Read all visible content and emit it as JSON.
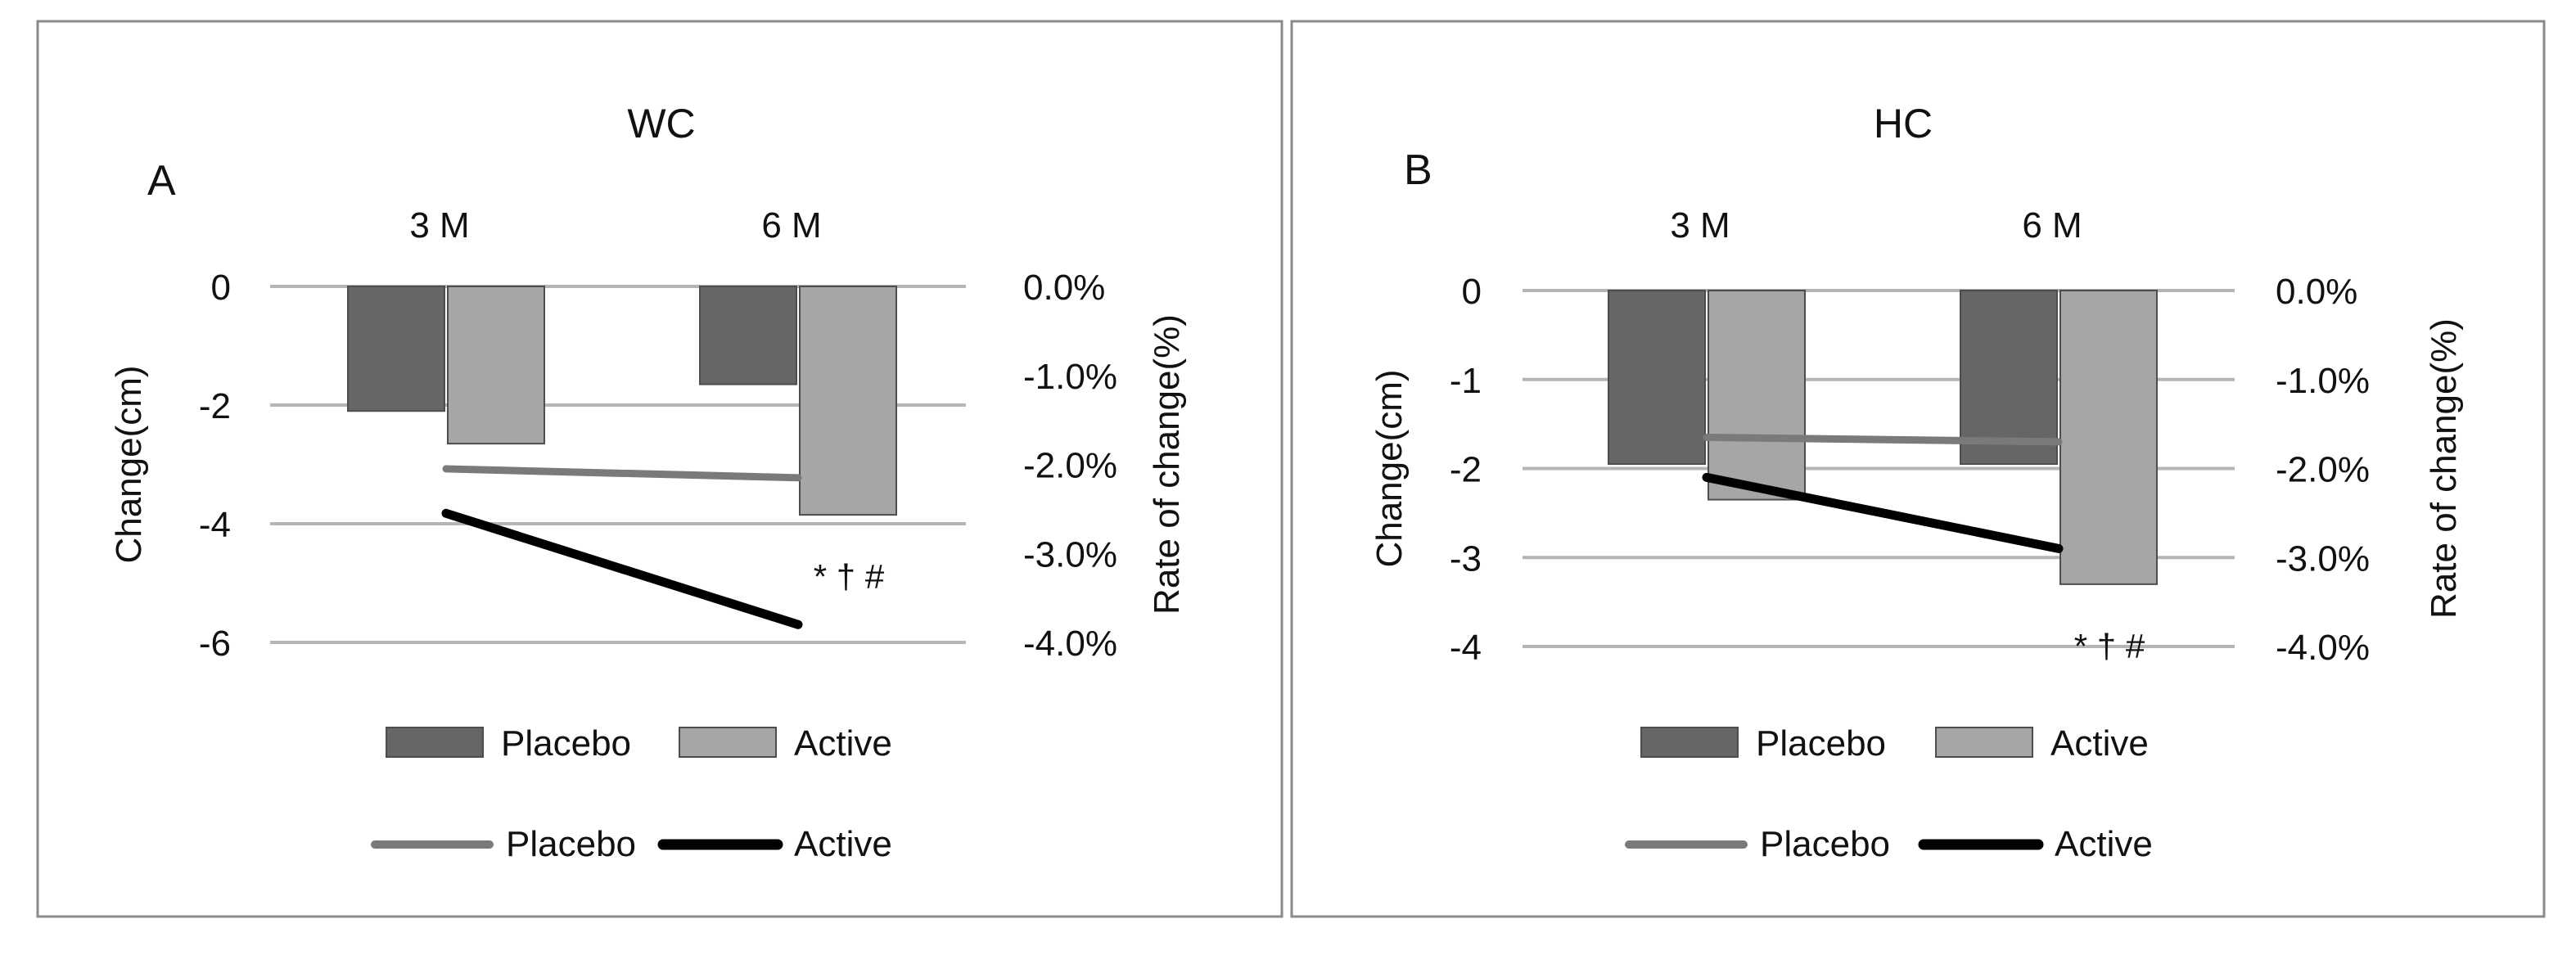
{
  "chart_data": [
    {
      "type": "bar",
      "panel_label": "A",
      "title": "WC",
      "categories": [
        "3 M",
        "6 M"
      ],
      "y_ticks": [
        "0",
        "-2",
        "-4",
        "-6"
      ],
      "y2_ticks": [
        "0.0%",
        "-1.0%",
        "-2.0%",
        "-3.0%",
        "-4.0%"
      ],
      "ylabel": "Change(cm)",
      "y2label": "Rate of change(%)",
      "ylim": [
        -6,
        0
      ],
      "y2lim": [
        -4.0,
        0.0
      ],
      "bar_series": [
        {
          "name": "Placebo",
          "values": [
            -2.1,
            -1.65
          ],
          "color": "#666666"
        },
        {
          "name": "Active",
          "values": [
            -2.65,
            -3.85
          ],
          "color": "#a6a6a6"
        }
      ],
      "line_series": [
        {
          "name": "Placebo",
          "values": [
            -2.05,
            -2.15
          ],
          "color": "#7a7a7a"
        },
        {
          "name": "Active",
          "values": [
            -2.55,
            -3.8
          ],
          "color": "#000000"
        }
      ],
      "annotation": "* † #",
      "annotation_category": 1,
      "legend": {
        "bars": [
          "Placebo",
          "Active"
        ],
        "lines": [
          "Placebo",
          "Active"
        ]
      },
      "grid": true
    },
    {
      "type": "bar",
      "panel_label": "B",
      "title": "HC",
      "categories": [
        "3 M",
        "6 M"
      ],
      "y_ticks": [
        "0",
        "-1",
        "-2",
        "-3",
        "-4"
      ],
      "y2_ticks": [
        "0.0%",
        "-1.0%",
        "-2.0%",
        "-3.0%",
        "-4.0%"
      ],
      "ylabel": "Change(cm)",
      "y2label": "Rate of change(%)",
      "ylim": [
        -4,
        0
      ],
      "y2lim": [
        -4.0,
        0.0
      ],
      "bar_series": [
        {
          "name": "Placebo",
          "values": [
            -1.95,
            -1.95
          ],
          "color": "#666666"
        },
        {
          "name": "Active",
          "values": [
            -2.35,
            -3.3
          ],
          "color": "#a6a6a6"
        }
      ],
      "line_series": [
        {
          "name": "Placebo",
          "values": [
            -1.65,
            -1.7
          ],
          "color": "#7a7a7a"
        },
        {
          "name": "Active",
          "values": [
            -2.1,
            -2.9
          ],
          "color": "#000000"
        }
      ],
      "annotation": "* † #",
      "annotation_category": 1,
      "legend": {
        "bars": [
          "Placebo",
          "Active"
        ],
        "lines": [
          "Placebo",
          "Active"
        ]
      },
      "grid": true
    }
  ]
}
